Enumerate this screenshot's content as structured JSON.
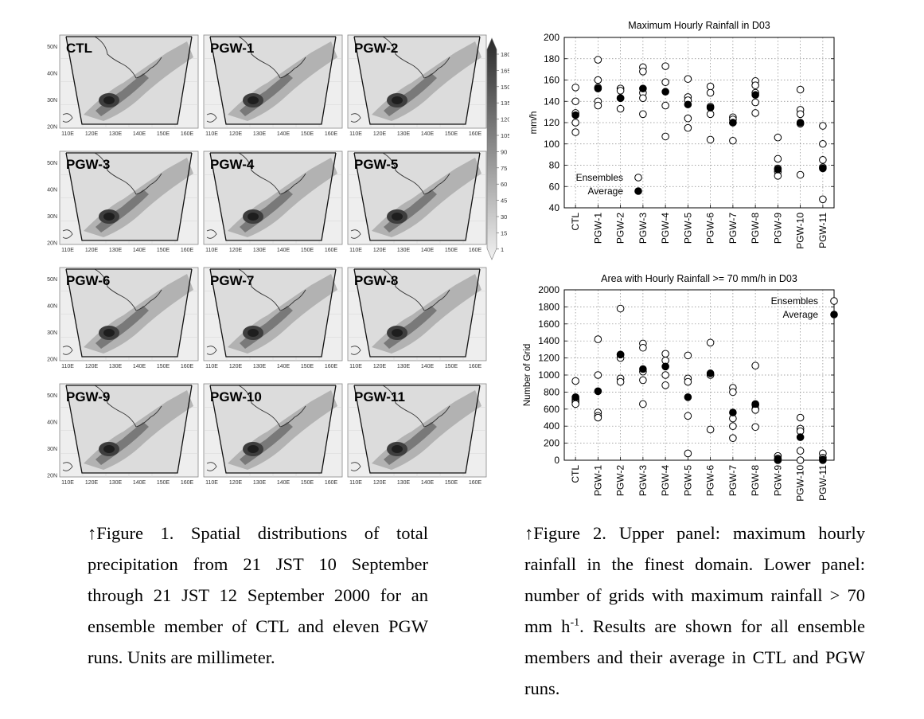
{
  "figure1": {
    "panels": [
      "CTL",
      "PGW-1",
      "PGW-2",
      "PGW-3",
      "PGW-4",
      "PGW-5",
      "PGW-6",
      "PGW-7",
      "PGW-8",
      "PGW-9",
      "PGW-10",
      "PGW-11"
    ],
    "lat_labels": [
      "50N",
      "40N",
      "30N",
      "20N"
    ],
    "lon_labels": [
      "110E",
      "120E",
      "130E",
      "140E",
      "150E",
      "160E"
    ],
    "colorbar_labels": [
      "180",
      "165",
      "150",
      "135",
      "120",
      "105",
      "90",
      "75",
      "60",
      "45",
      "30",
      "15",
      "1"
    ]
  },
  "chart_data": [
    {
      "type": "scatter",
      "title": "Maximum Hourly Rainfall in D03",
      "xlabel": "",
      "ylabel": "mm/h",
      "ylim": [
        40,
        200
      ],
      "yticks": [
        40,
        60,
        80,
        100,
        120,
        140,
        160,
        180,
        200
      ],
      "grid": true,
      "legend_position": "bottom-left",
      "categories": [
        "CTL",
        "PGW-1",
        "PGW-2",
        "PGW-3",
        "PGW-4",
        "PGW-5",
        "PGW-6",
        "PGW-7",
        "PGW-8",
        "PGW-9",
        "PGW-10",
        "PGW-11"
      ],
      "series": [
        {
          "name": "Ensembles",
          "values": [
            [
              153,
              140,
              129,
              120,
              111
            ],
            [
              179,
              160,
              153,
              140,
              136
            ],
            [
              152,
              150,
              143,
              133
            ],
            [
              172,
              168,
              148,
              143,
              128
            ],
            [
              173,
              158,
              136,
              107
            ],
            [
              161,
              144,
              141,
              124,
              115
            ],
            [
              154,
              148,
              135,
              128,
              104
            ],
            [
              125,
              123,
              120,
              103
            ],
            [
              159,
              155,
              148,
              139,
              129
            ],
            [
              106,
              86,
              77,
              74,
              70
            ],
            [
              151,
              132,
              128,
              119,
              71
            ],
            [
              117,
              100,
              85,
              78,
              48
            ]
          ]
        },
        {
          "name": "Average",
          "values": [
            127,
            152,
            143,
            152,
            149,
            137,
            134,
            120,
            146,
            76,
            120,
            77
          ]
        }
      ]
    },
    {
      "type": "scatter",
      "title": "Area with Hourly Rainfall >= 70 mm/h in D03",
      "xlabel": "",
      "ylabel": "Number of Grid",
      "ylim": [
        0,
        2000
      ],
      "yticks": [
        0,
        200,
        400,
        600,
        800,
        1000,
        1200,
        1400,
        1600,
        1800,
        2000
      ],
      "grid": true,
      "legend_position": "top-right",
      "categories": [
        "CTL",
        "PGW-1",
        "PGW-2",
        "PGW-3",
        "PGW-4",
        "PGW-5",
        "PGW-6",
        "PGW-7",
        "PGW-8",
        "PGW-9",
        "PGW-10",
        "PGW-11"
      ],
      "series": [
        {
          "name": "Ensembles",
          "values": [
            [
              930,
              720,
              700,
              680,
              660
            ],
            [
              1420,
              1000,
              560,
              520,
              500
            ],
            [
              1780,
              1240,
              1200,
              960,
              920
            ],
            [
              1370,
              1320,
              1040,
              940,
              660
            ],
            [
              1250,
              1170,
              1000,
              880
            ],
            [
              1230,
              960,
              920,
              520,
              80
            ],
            [
              1380,
              1000,
              360
            ],
            [
              850,
              800,
              490,
              400,
              260
            ],
            [
              1110,
              650,
              600,
              590,
              390
            ],
            [
              50,
              20,
              0
            ],
            [
              500,
              370,
              340,
              110,
              0
            ],
            [
              80,
              30,
              0
            ]
          ]
        },
        {
          "name": "Average",
          "values": [
            740,
            810,
            1240,
            1070,
            1100,
            740,
            1020,
            560,
            660,
            10,
            270,
            10
          ]
        }
      ]
    }
  ],
  "captions": {
    "fig1": "↑Figure 1. Spatial distributions of total precipitation from 21 JST 10 September through 21 JST 12 September 2000 for an ensemble member of CTL and eleven PGW runs. Units are millimeter.",
    "fig2_before_sup": "↑Figure 2. Upper panel: maximum hourly rainfall in the finest domain. Lower panel: number of grids with maximum rainfall > 70 mm h",
    "fig2_sup": "-1",
    "fig2_after_sup": ". Results are shown for all ensemble members and their average in CTL and PGW runs."
  }
}
